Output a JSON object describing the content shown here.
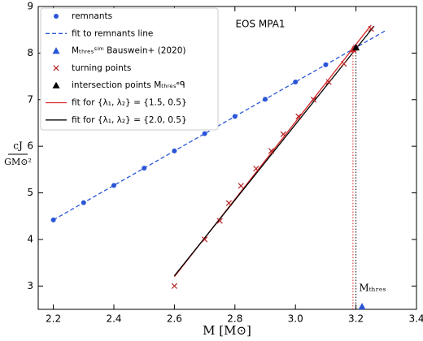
{
  "chart_data": {
    "type": "scatter",
    "title": "EOS MPA1",
    "x_label": "M [M⊙]",
    "y_label_numerator": "cJ",
    "y_label_denominator": "GM⊙²",
    "annotation": "Mₜₕᵣₑₛ",
    "xlim": [
      2.15,
      3.4
    ],
    "ylim": [
      2.5,
      9
    ],
    "xticks": [
      2.2,
      2.4,
      2.6,
      2.8,
      {
        "value": 3,
        "label": "3.0"
      },
      3.2,
      3.4
    ],
    "yticks": [
      3,
      4,
      5,
      6,
      7,
      8,
      9
    ],
    "legend": "upper left",
    "series": [
      {
        "name": "remnants",
        "marker": "circle",
        "color": "#2a55d6",
        "x": [
          2.2,
          2.3,
          2.4,
          2.5,
          2.6,
          2.7,
          2.8,
          2.9,
          3.0,
          3.1,
          3.2
        ],
        "values": [
          4.42,
          4.79,
          5.16,
          5.53,
          5.9,
          6.27,
          6.64,
          7.01,
          7.38,
          7.75,
          8.12
        ]
      },
      {
        "name": "fit to remnants line",
        "line": "dashed",
        "color": "#2a55d6",
        "x": [
          2.2,
          3.3
        ],
        "values": [
          4.42,
          8.49
        ]
      },
      {
        "name": "Mₜₕᵣₑₛˢⁱᵐ Bauswein+ (2020)",
        "marker": "triangle",
        "color": "#2a55d6",
        "x": [
          3.22
        ],
        "values": [
          2.56
        ]
      },
      {
        "name": "turning points",
        "marker": "x",
        "color": "#b22222",
        "x": [
          2.6,
          2.7,
          2.75,
          2.78,
          2.82,
          2.87,
          2.92,
          2.96,
          3.01,
          3.06,
          3.11,
          3.16,
          3.2,
          3.25
        ],
        "values": [
          3.0,
          4.0,
          4.4,
          4.78,
          5.15,
          5.52,
          5.9,
          6.26,
          6.64,
          7.0,
          7.38,
          7.77,
          8.12,
          8.52
        ]
      },
      {
        "name": "intersection points Mₜₕᵣₑₛᵉᑫ",
        "marker": "triangle",
        "color": "#000000",
        "colors": [
          "#d62728",
          "#000000"
        ],
        "drop_lines": true,
        "x": [
          3.19,
          3.2
        ],
        "values": [
          8.08,
          8.12
        ]
      },
      {
        "name": "fit for {λ₁, λ₂} = {1.5, 0.5}",
        "line": "solid",
        "color": "#d62728",
        "x": [
          2.6,
          3.25
        ],
        "values": [
          3.2,
          8.6
        ]
      },
      {
        "name": "fit for {λ₁, λ₂} = {2.0, 0.5}",
        "line": "solid",
        "color": "#000000",
        "x": [
          2.6,
          3.26
        ],
        "values": [
          3.22,
          8.58
        ]
      }
    ]
  }
}
